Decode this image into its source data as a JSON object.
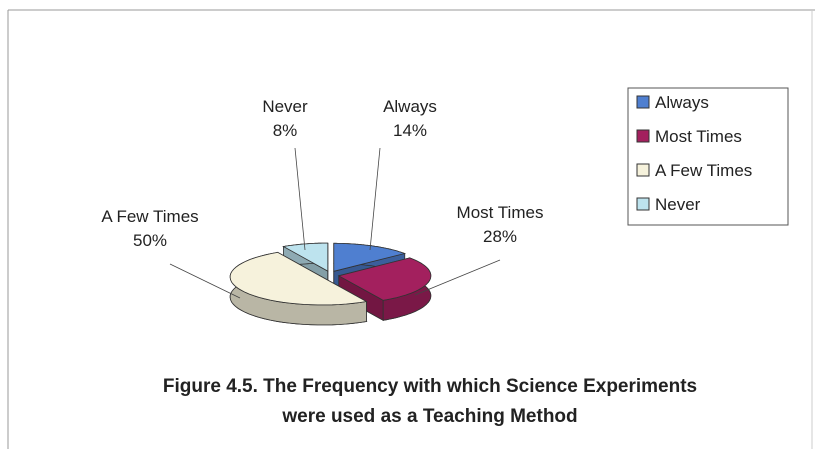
{
  "chart_data": {
    "type": "pie",
    "title": "Figure 4.5. The Frequency with which Science Experiments were used as a Teaching Method",
    "categories": [
      "Always",
      "Most Times",
      "A Few Times",
      "Never"
    ],
    "values": [
      14,
      28,
      50,
      8
    ],
    "value_labels": [
      "14%",
      "28%",
      "50%",
      "8%"
    ],
    "colors": [
      "#4f7fd0",
      "#a3205e",
      "#f6f2dc",
      "#bde3ee"
    ],
    "legend": "right"
  }
}
